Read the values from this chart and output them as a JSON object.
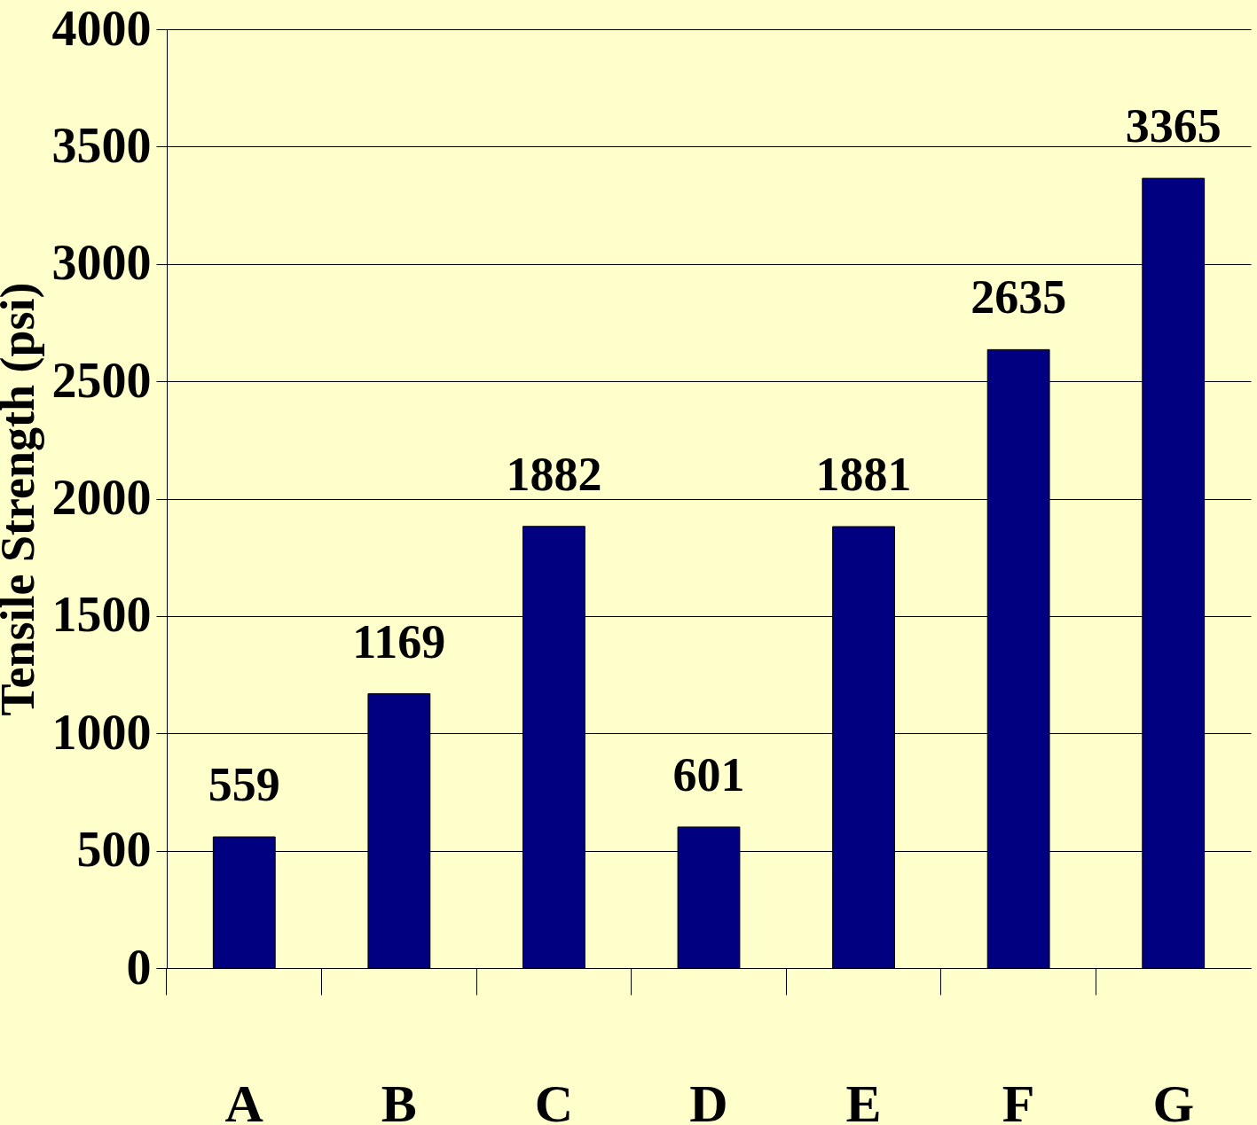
{
  "chart_data": {
    "type": "bar",
    "ylabel": "Tensile Strength (psi)",
    "categories": [
      "A",
      "B",
      "C",
      "D",
      "E",
      "F",
      "G"
    ],
    "values": [
      559,
      1169,
      1882,
      601,
      1881,
      2635,
      3365
    ],
    "color": "#000080",
    "ylim": [
      0,
      4000
    ],
    "yticks": [
      0,
      500,
      1000,
      1500,
      2000,
      2500,
      3000,
      3500,
      4000
    ],
    "grid": "y",
    "data_labels": true
  }
}
